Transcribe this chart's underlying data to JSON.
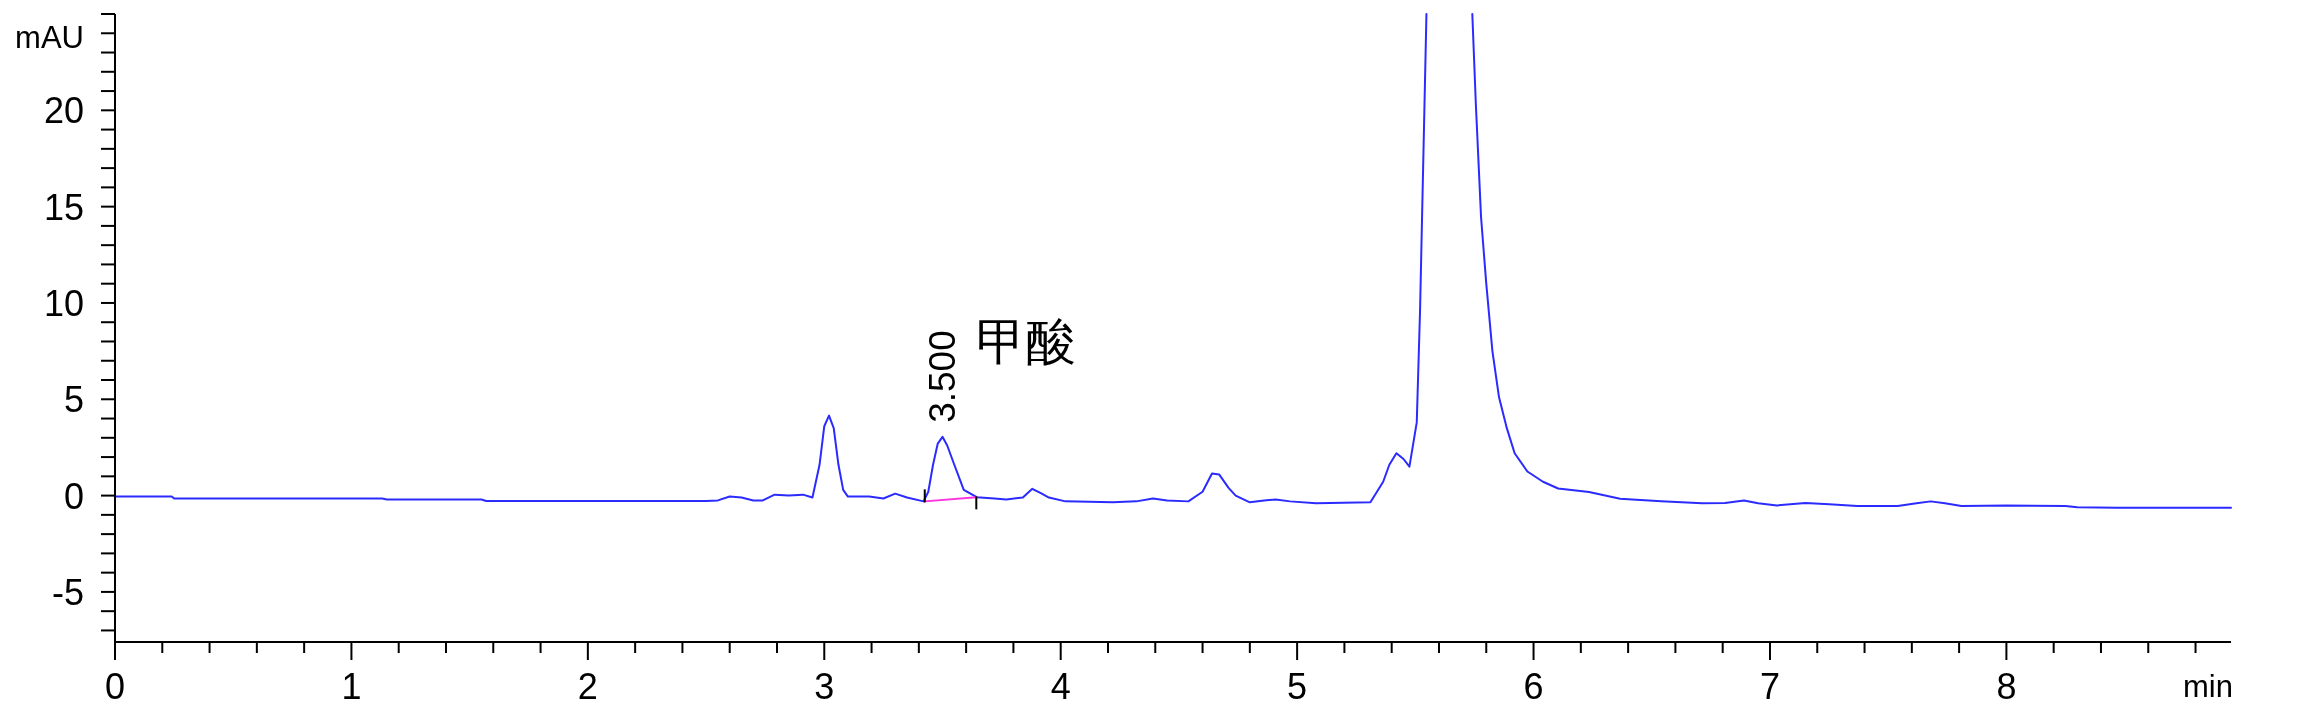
{
  "chart_data": {
    "type": "line",
    "xlabel": "min",
    "ylabel": "mAU",
    "xlim": [
      0,
      8.95
    ],
    "ylim": [
      -7.6,
      25
    ],
    "xticks": [
      0,
      {
        "value": 0.2,
        "label": null
      },
      {
        "value": 0.4,
        "label": null
      },
      {
        "value": 0.6,
        "label": null
      },
      {
        "value": 0.8,
        "label": null
      },
      1,
      {
        "value": 1.2,
        "label": null
      },
      {
        "value": 1.4,
        "label": null
      },
      {
        "value": 1.6,
        "label": null
      },
      {
        "value": 1.8,
        "label": null
      },
      2,
      {
        "value": 2.2,
        "label": null
      },
      {
        "value": 2.4,
        "label": null
      },
      {
        "value": 2.6,
        "label": null
      },
      {
        "value": 2.8,
        "label": null
      },
      3,
      {
        "value": 3.2,
        "label": null
      },
      {
        "value": 3.4,
        "label": null
      },
      {
        "value": 3.6,
        "label": null
      },
      {
        "value": 3.8,
        "label": null
      },
      4,
      {
        "value": 4.2,
        "label": null
      },
      {
        "value": 4.4,
        "label": null
      },
      {
        "value": 4.6,
        "label": null
      },
      {
        "value": 4.8,
        "label": null
      },
      5,
      {
        "value": 5.2,
        "label": null
      },
      {
        "value": 5.4,
        "label": null
      },
      {
        "value": 5.6,
        "label": null
      },
      {
        "value": 5.8,
        "label": null
      },
      6,
      {
        "value": 6.2,
        "label": null
      },
      {
        "value": 6.4,
        "label": null
      },
      {
        "value": 6.6,
        "label": null
      },
      {
        "value": 6.8,
        "label": null
      },
      7,
      {
        "value": 7.2,
        "label": null
      },
      {
        "value": 7.4,
        "label": null
      },
      {
        "value": 7.6,
        "label": null
      },
      {
        "value": 7.8,
        "label": null
      },
      8,
      {
        "value": 8.2,
        "label": null
      },
      {
        "value": 8.4,
        "label": null
      },
      {
        "value": 8.6,
        "label": null
      },
      {
        "value": 8.8,
        "label": null
      }
    ],
    "yticks": [
      {
        "value": -7,
        "label": null
      },
      {
        "value": -6,
        "label": null
      },
      -5,
      {
        "value": -4,
        "label": null
      },
      {
        "value": -3,
        "label": null
      },
      {
        "value": -2,
        "label": null
      },
      {
        "value": -1,
        "label": null
      },
      0,
      {
        "value": 1,
        "label": null
      },
      {
        "value": 2,
        "label": null
      },
      {
        "value": 3,
        "label": null
      },
      {
        "value": 4,
        "label": null
      },
      5,
      {
        "value": 6,
        "label": null
      },
      {
        "value": 7,
        "label": null
      },
      {
        "value": 8,
        "label": null
      },
      {
        "value": 9,
        "label": null
      },
      10,
      {
        "value": 11,
        "label": null
      },
      {
        "value": 12,
        "label": null
      },
      {
        "value": 13,
        "label": null
      },
      {
        "value": 14,
        "label": null
      },
      15,
      {
        "value": 16,
        "label": null
      },
      {
        "value": 17,
        "label": null
      },
      {
        "value": 18,
        "label": null
      },
      {
        "value": 19,
        "label": null
      },
      20,
      {
        "value": 21,
        "label": null
      },
      {
        "value": 22,
        "label": null
      },
      {
        "value": 23,
        "label": null
      },
      {
        "value": 24,
        "label": null
      },
      {
        "value": 25,
        "label": null
      }
    ],
    "series": [
      {
        "color": "#2b2bff",
        "x": [
          0,
          0.24,
          0.25,
          1.13,
          1.15,
          1.55,
          1.57,
          2.5,
          2.55,
          2.6,
          2.65,
          2.7,
          2.74,
          2.79,
          2.85,
          2.91,
          2.95,
          2.98,
          3.0,
          3.02,
          3.04,
          3.06,
          3.08,
          3.1,
          3.19,
          3.25,
          3.3,
          3.35,
          3.42,
          3.44,
          3.46,
          3.48,
          3.5,
          3.52,
          3.55,
          3.59,
          3.645,
          3.72,
          3.77,
          3.84,
          3.88,
          3.92,
          3.95,
          4.02,
          4.22,
          4.32,
          4.39,
          4.45,
          4.54,
          4.6,
          4.64,
          4.67,
          4.71,
          4.74,
          4.8,
          4.86,
          4.91,
          4.97,
          5.08,
          5.31,
          5.364,
          5.39,
          5.42,
          5.45,
          5.475,
          5.506,
          5.52,
          5.534,
          5.547
        ],
        "values": [
          -0.05,
          -0.05,
          -0.15,
          -0.15,
          -0.2,
          -0.2,
          -0.28,
          -0.28,
          -0.25,
          -0.05,
          -0.1,
          -0.25,
          -0.25,
          0.05,
          0.0,
          0.05,
          -0.1,
          1.6,
          3.6,
          4.15,
          3.5,
          1.6,
          0.3,
          -0.05,
          -0.05,
          -0.15,
          0.1,
          -0.1,
          -0.3,
          0.2,
          1.6,
          2.7,
          3.05,
          2.6,
          1.6,
          0.3,
          -0.08,
          -0.15,
          -0.2,
          -0.1,
          0.35,
          0.1,
          -0.1,
          -0.3,
          -0.35,
          -0.3,
          -0.15,
          -0.25,
          -0.3,
          0.2,
          1.15,
          1.1,
          0.4,
          0.0,
          -0.35,
          -0.25,
          -0.2,
          -0.3,
          -0.4,
          -0.35,
          0.72,
          1.6,
          2.2,
          1.9,
          1.5,
          3.8,
          9.65,
          17.6,
          25
        ]
      },
      {
        "color": "#2b2bff",
        "x": [
          5.741,
          5.756,
          5.778,
          5.8,
          5.826,
          5.854,
          5.887,
          5.92,
          5.974,
          6.04,
          6.104,
          6.235,
          6.366,
          6.54,
          6.713,
          6.81,
          6.89,
          6.95,
          7.03,
          7.15,
          7.25,
          7.37,
          7.54,
          7.62,
          7.68,
          7.74,
          7.81,
          8.0,
          8.25,
          8.3,
          8.47,
          8.95
        ],
        "values": [
          25,
          20.3,
          14.45,
          11.0,
          7.5,
          5.1,
          3.5,
          2.2,
          1.25,
          0.72,
          0.37,
          0.19,
          -0.16,
          -0.29,
          -0.4,
          -0.39,
          -0.25,
          -0.4,
          -0.51,
          -0.39,
          -0.45,
          -0.54,
          -0.54,
          -0.4,
          -0.3,
          -0.4,
          -0.54,
          -0.51,
          -0.54,
          -0.6,
          -0.63,
          -0.63
        ]
      },
      {
        "color": "#ff33dd",
        "x": [
          3.425,
          3.643
        ],
        "values": [
          -0.3,
          -0.09
        ]
      }
    ],
    "annotations": [
      {
        "text": "3.500",
        "x": 3.5,
        "y": 3.05
      },
      {
        "text": "甲酸",
        "x": 3.5,
        "y": 3.05
      }
    ]
  }
}
